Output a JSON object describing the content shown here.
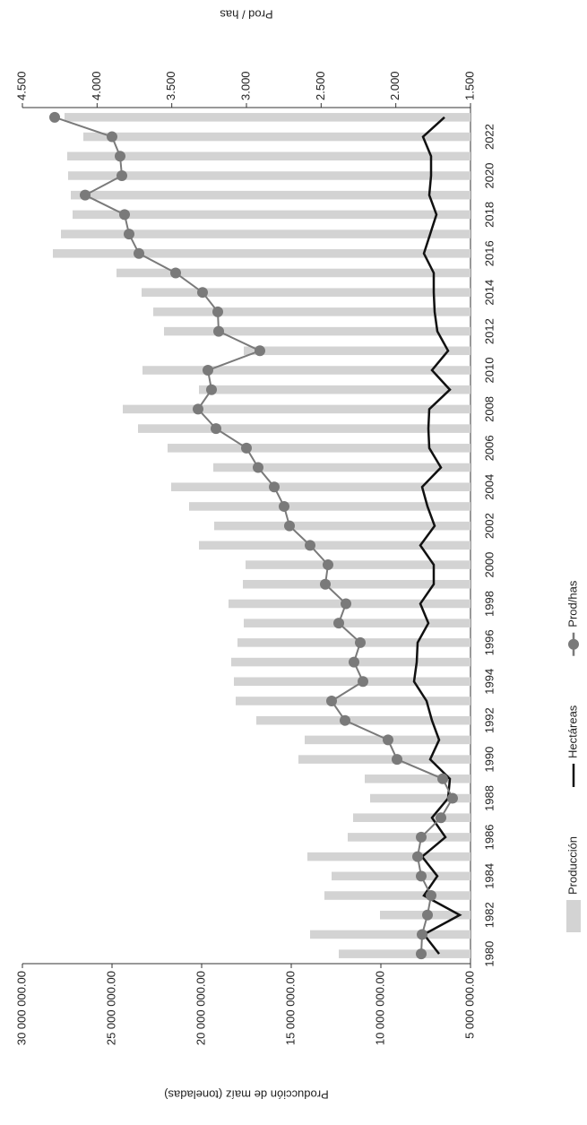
{
  "chart_data": {
    "type": "bar",
    "y_label": "Producción de maíz (toneladas)",
    "y2_label": "Prod / has",
    "categories": [
      "1980",
      null,
      "1982",
      null,
      "1984",
      null,
      "1986",
      null,
      "1988",
      null,
      "1990",
      null,
      "1992",
      null,
      "1994",
      null,
      "1996",
      null,
      "1998",
      null,
      "2000",
      null,
      "2002",
      null,
      "2004",
      null,
      "2006",
      null,
      "2008",
      null,
      "2010",
      null,
      "2012",
      null,
      "2014",
      null,
      "2016",
      null,
      "2018",
      null,
      "2020",
      null,
      "2022",
      null
    ],
    "series": [
      {
        "name": "Producción",
        "type": "bar",
        "color": "#d3d3d3",
        "values": [
          12350000,
          13950000,
          10050000,
          13150000,
          12750000,
          14100000,
          11850000,
          11550000,
          10600000,
          10900000,
          14600000,
          14250000,
          16950000,
          18100000,
          18200000,
          18350000,
          18000000,
          17650000,
          18500000,
          17700000,
          17550000,
          20150000,
          19300000,
          20700000,
          21700000,
          19350000,
          21900000,
          23550000,
          24400000,
          20150000,
          23300000,
          17650000,
          22100000,
          22700000,
          23350000,
          24750000,
          28300000,
          27850000,
          27200000,
          27300000,
          27450000,
          27500000,
          26600000,
          27650000
        ]
      },
      {
        "name": "Hectáreas",
        "type": "line",
        "color": "#111111",
        "values": [
          6750000,
          7600000,
          5600000,
          7600000,
          6850000,
          7700000,
          6400000,
          7150000,
          6250000,
          6150000,
          7250000,
          6750000,
          7150000,
          7450000,
          8150000,
          8000000,
          7950000,
          7350000,
          7800000,
          7050000,
          7050000,
          7800000,
          7000000,
          7400000,
          7700000,
          6650000,
          7300000,
          7350000,
          7300000,
          6150000,
          7150000,
          6250000,
          6850000,
          7000000,
          7050000,
          7050000,
          7600000,
          7250000,
          6900000,
          7300000,
          7200000,
          7200000,
          7650000,
          6450000
        ]
      },
      {
        "name": "Prod/has",
        "type": "line",
        "marker": true,
        "axis": "y2",
        "color": "#7a7a7a",
        "values": [
          1830,
          1824,
          1788,
          1764,
          1830,
          1854,
          1830,
          1698,
          1620,
          1686,
          1992,
          2052,
          2340,
          2430,
          2220,
          2280,
          2238,
          2382,
          2334,
          2472,
          2454,
          2574,
          2712,
          2748,
          2814,
          2922,
          3000,
          3204,
          3324,
          3234,
          3258,
          2910,
          3186,
          3192,
          3294,
          3474,
          3720,
          3786,
          3816,
          4080,
          3834,
          3846,
          3900,
          4284
        ]
      }
    ],
    "ylim": [
      5000000,
      30000000
    ],
    "yticks": [
      {
        "value": 5000000,
        "label": "5 000 000.00"
      },
      {
        "value": 10000000,
        "label": "10 000 000.00"
      },
      {
        "value": 15000000,
        "label": "15 000 000.00"
      },
      {
        "value": 20000000,
        "label": "20 000 000.00"
      },
      {
        "value": 25000000,
        "label": "25 000 000.00"
      },
      {
        "value": 30000000,
        "label": "30 000 000.00"
      }
    ],
    "y2lim": [
      1500,
      4500
    ],
    "y2ticks": [
      {
        "value": 1500,
        "label": "1.500"
      },
      {
        "value": 2000,
        "label": "2.000"
      },
      {
        "value": 2500,
        "label": "2.500"
      },
      {
        "value": 3000,
        "label": "3.000"
      },
      {
        "value": 3500,
        "label": "3.500"
      },
      {
        "value": 4000,
        "label": "4.000"
      },
      {
        "value": 4500,
        "label": "4.500"
      }
    ],
    "grid": false,
    "legend": "bottom",
    "rotation": -90
  }
}
